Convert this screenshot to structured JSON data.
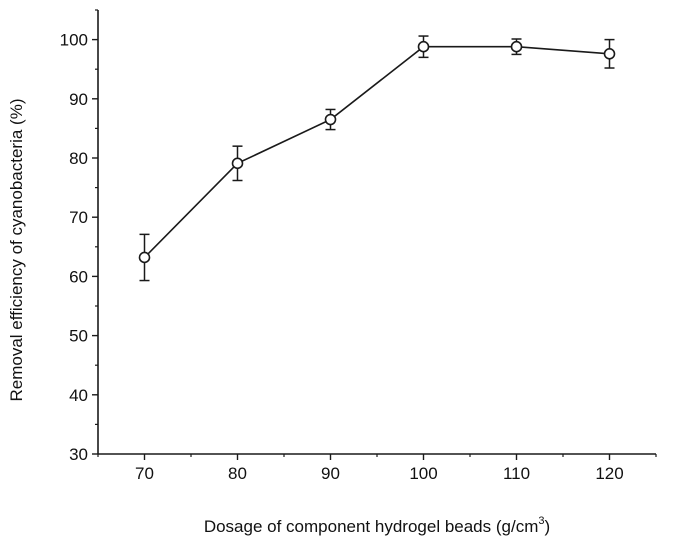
{
  "chart_data": {
    "type": "line",
    "title": "",
    "xlabel": "Dosage of component hydrogel beads  (g/cm",
    "xlabel_superscript": "3",
    "xlabel_suffix": ")",
    "ylabel": "Removal efficiency of cyanobacteria (%)",
    "x": [
      70,
      80,
      90,
      100,
      110,
      120
    ],
    "series": [
      {
        "values": [
          63.2,
          79.1,
          86.5,
          98.8,
          98.8,
          97.6
        ],
        "error": [
          3.9,
          2.9,
          1.7,
          1.8,
          1.3,
          2.4
        ]
      }
    ],
    "xlim": [
      65,
      125
    ],
    "ylim": [
      30,
      105
    ],
    "xticks": [
      "70",
      "80",
      "90",
      "100",
      "110",
      "120"
    ],
    "yticks": [
      "30",
      "40",
      "50",
      "60",
      "70",
      "80",
      "90",
      "100"
    ],
    "marker": "open-circle",
    "grid": false,
    "legend": "none",
    "colors": {
      "line": "#1a1a1a",
      "marker_fill": "#ffffff"
    }
  }
}
